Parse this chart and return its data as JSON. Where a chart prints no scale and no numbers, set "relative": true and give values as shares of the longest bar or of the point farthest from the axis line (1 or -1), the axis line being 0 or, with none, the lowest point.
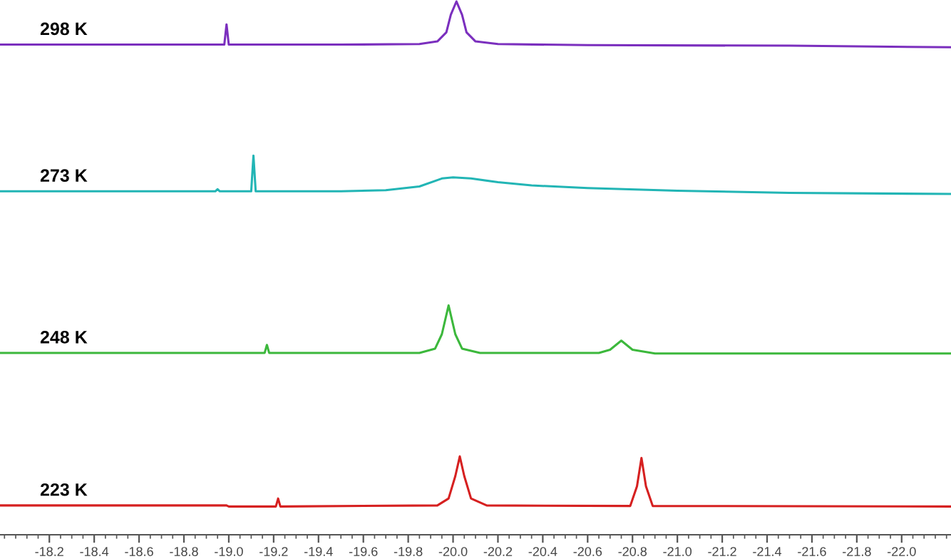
{
  "chart_data": {
    "type": "line",
    "relative": true,
    "xlim": [
      -17.98,
      -22.22
    ],
    "grid": false,
    "legend": false,
    "xticks": [
      -18.2,
      -18.4,
      -18.6,
      -18.8,
      {
        "value": -19,
        "label": "-19.0"
      },
      -19.2,
      -19.4,
      -19.6,
      -19.8,
      {
        "value": -20,
        "label": "-20.0"
      },
      -20.2,
      -20.4,
      -20.6,
      -20.8,
      {
        "value": -21,
        "label": "-21.0"
      },
      -21.2,
      -21.4,
      -21.6,
      -21.8,
      {
        "value": -22,
        "label": "-22.0"
      }
    ],
    "series": [
      {
        "name": "298 K",
        "color": "#7b2fbe",
        "x": [
          -17.98,
          -18.5,
          -18.98,
          -18.99,
          -19.0,
          -19.5,
          -19.85,
          -19.93,
          -19.97,
          -19.99,
          -20.015,
          -20.04,
          -20.06,
          -20.1,
          -20.2,
          -20.6,
          -21.5,
          -22.22
        ],
        "values": [
          0.919,
          0.919,
          0.919,
          0.957,
          0.919,
          0.919,
          0.92,
          0.925,
          0.942,
          0.975,
          1,
          0.975,
          0.942,
          0.925,
          0.92,
          0.918,
          0.917,
          0.914
        ]
      },
      {
        "name": "273 K",
        "color": "#22b5b5",
        "x": [
          -17.98,
          -18.94,
          -18.95,
          -18.96,
          -19.1,
          -19.11,
          -19.12,
          -19.5,
          -19.7,
          -19.85,
          -19.95,
          -20.0,
          -20.08,
          -20.2,
          -20.35,
          -20.6,
          -21.0,
          -21.5,
          -22.22
        ],
        "values": [
          0.644,
          0.644,
          0.648,
          0.644,
          0.644,
          0.711,
          0.644,
          0.644,
          0.646,
          0.653,
          0.668,
          0.67,
          0.668,
          0.661,
          0.655,
          0.65,
          0.645,
          0.641,
          0.639
        ]
      },
      {
        "name": "248 K",
        "color": "#3cb83c",
        "x": [
          -17.98,
          -19.16,
          -19.17,
          -19.18,
          -19.85,
          -19.92,
          -19.95,
          -19.98,
          -20.01,
          -20.04,
          -20.12,
          -20.65,
          -20.7,
          -20.75,
          -20.8,
          -20.9,
          -22.22
        ],
        "values": [
          0.341,
          0.341,
          0.356,
          0.341,
          0.341,
          0.349,
          0.376,
          0.43,
          0.376,
          0.349,
          0.341,
          0.341,
          0.347,
          0.364,
          0.347,
          0.34,
          0.34
        ]
      },
      {
        "name": "223 K",
        "color": "#d62020",
        "x": [
          -17.98,
          -18.99,
          -19.0,
          -19.21,
          -19.22,
          -19.23,
          -19.93,
          -19.98,
          -20.01,
          -20.03,
          -20.05,
          -20.08,
          -20.15,
          -20.79,
          -20.82,
          -20.84,
          -20.86,
          -20.89,
          -22.22
        ],
        "values": [
          0.055,
          0.055,
          0.053,
          0.053,
          0.068,
          0.053,
          0.055,
          0.068,
          0.11,
          0.147,
          0.11,
          0.068,
          0.055,
          0.054,
          0.091,
          0.144,
          0.091,
          0.054,
          0.053
        ]
      }
    ]
  }
}
